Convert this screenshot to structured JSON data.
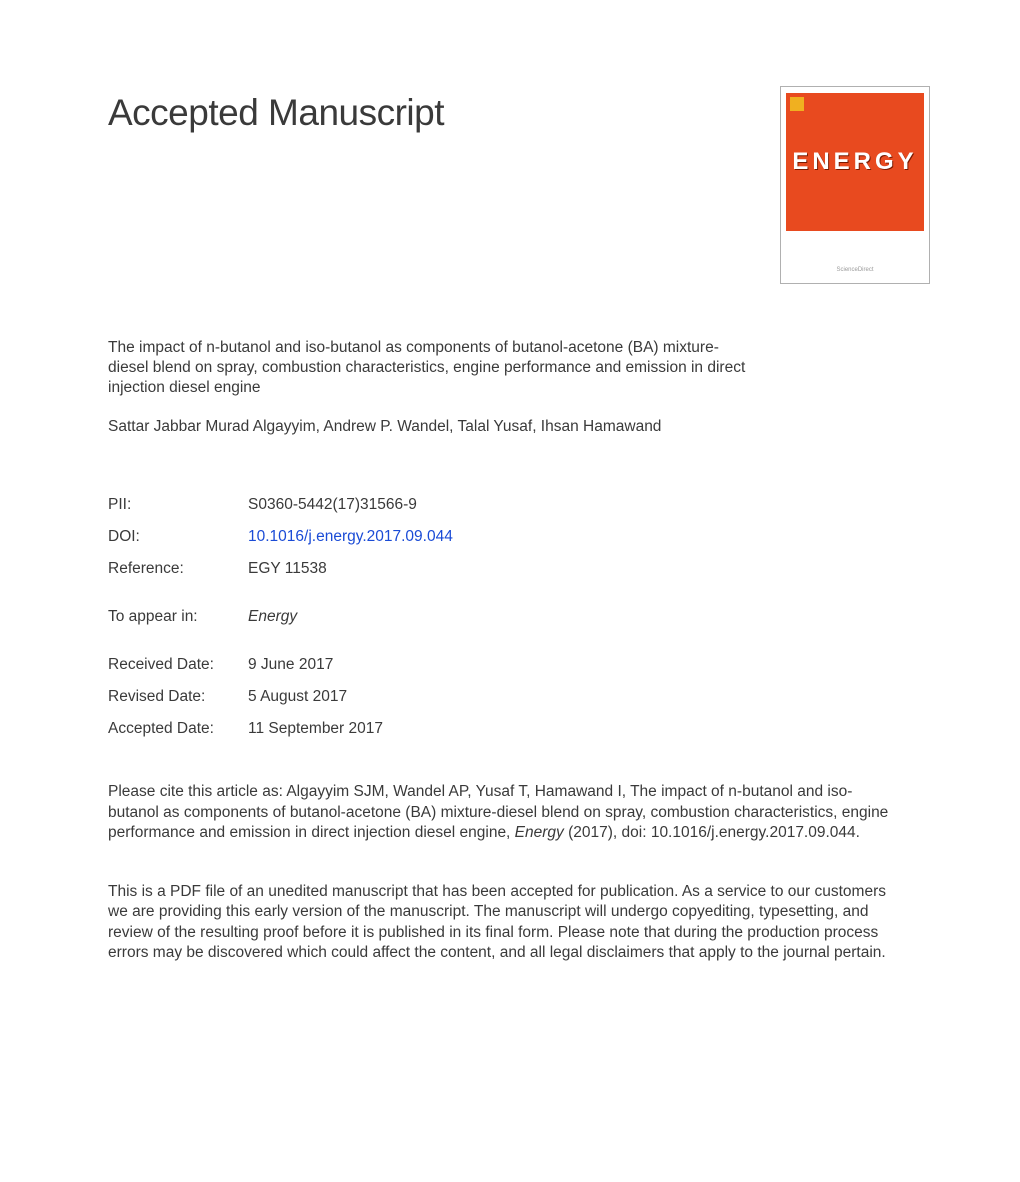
{
  "heading": "Accepted Manuscript",
  "journal_cover": {
    "background": "#e84a1f",
    "logo_text": "ENERGY",
    "logo_color": "#ffffff",
    "publisher_badge_color": "#f0b020",
    "footer_text": "ScienceDirect"
  },
  "article_title": "The impact of n-butanol and iso-butanol as components of butanol-acetone (BA) mixture-diesel blend on spray, combustion characteristics, engine performance and emission in direct injection diesel engine",
  "authors": "Sattar Jabbar Murad Algayyim, Andrew P. Wandel, Talal Yusaf, Ihsan Hamawand",
  "meta": {
    "pii": {
      "label": "PII:",
      "value": "S0360-5442(17)31566-9"
    },
    "doi": {
      "label": "DOI:",
      "value": "10.1016/j.energy.2017.09.044"
    },
    "reference": {
      "label": "Reference:",
      "value": "EGY 11538"
    },
    "to_appear": {
      "label": "To appear in:",
      "value": "Energy"
    },
    "received": {
      "label": "Received Date:",
      "value": "9 June 2017"
    },
    "revised": {
      "label": "Revised Date:",
      "value": "5 August 2017"
    },
    "accepted": {
      "label": "Accepted Date:",
      "value": "11 September 2017"
    }
  },
  "citation": {
    "prefix": "Please cite this article as: Algayyim SJM, Wandel AP, Yusaf T, Hamawand I, The impact of n-butanol and iso-butanol as components of butanol-acetone (BA) mixture-diesel blend on spray, combustion characteristics, engine performance and emission in direct injection diesel engine, ",
    "journal": "Energy",
    "suffix": " (2017), doi: 10.1016/j.energy.2017.09.044."
  },
  "disclaimer": "This is a PDF file of an unedited manuscript that has been accepted for publication. As a service to our customers we are providing this early version of the manuscript. The manuscript will undergo copyediting, typesetting, and review of the resulting proof before it is published in its final form. Please note that during the production process errors may be discovered which could affect the content, and all legal disclaimers that apply to the journal pertain.",
  "colors": {
    "text": "#3a3a3a",
    "link": "#1a4bd6",
    "background": "#ffffff",
    "cover_border": "#b0b0b0"
  },
  "typography": {
    "body_fontsize": 15.5,
    "heading_fontsize": 37,
    "heading_weight": 400,
    "line_height": 1.32,
    "font_family": "Arial"
  }
}
